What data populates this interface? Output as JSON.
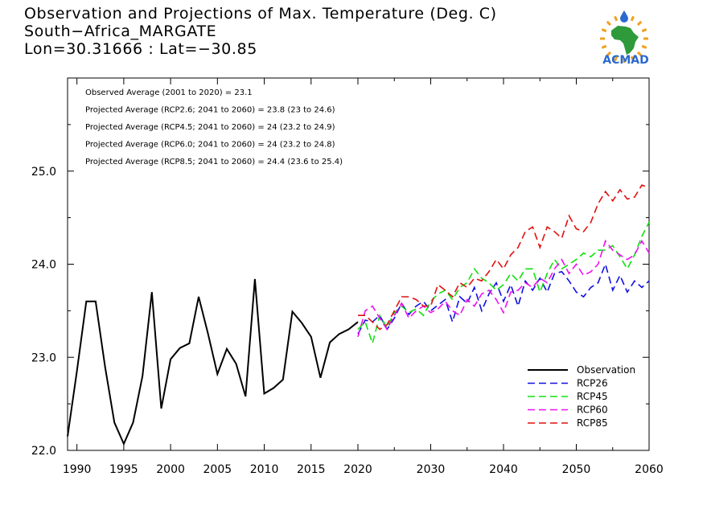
{
  "header": {
    "title": "Observation and Projections of Max. Temperature (Deg. C)",
    "location": "South−Africa_MARGATE",
    "coords": "Lon=30.31666 : Lat=−30.85"
  },
  "logo": {
    "text": "ACMAD"
  },
  "colors": {
    "Observation": "#000000",
    "RCP26": "#1010e0",
    "RCP45": "#10e010",
    "RCP60": "#f010f0",
    "RCP85": "#e01010",
    "logo_green": "#2e9a3a",
    "logo_orange": "#f0a020",
    "logo_blue": "#2a6ad0"
  },
  "chart_data": {
    "type": "line",
    "title": "Observation and Projections of Max. Temperature (Deg. C)",
    "xlim": [
      1989,
      2060
    ],
    "ylim": [
      22.0,
      26.0
    ],
    "xticks": [
      1990,
      1995,
      2000,
      2005,
      2010,
      2015,
      2020,
      2030,
      2040,
      2050,
      2060
    ],
    "yticks": [
      22.0,
      23.0,
      24.0,
      25.0
    ],
    "annotations": [
      "Observed Average (2001 to 2020) = 23.1",
      "Projected Average (RCP2.6; 2041 to 2060) = 23.8 (23 to 24.6)",
      "Projected Average (RCP4.5; 2041 to 2060) = 24 (23.2 to 24.9)",
      "Projected Average (RCP6.0; 2041 to 2060) = 24 (23.2 to 24.8)",
      "Projected Average (RCP8.5; 2041 to 2060) = 24.4 (23.6 to 25.4)"
    ],
    "legend_position": "bottom-right",
    "series": [
      {
        "name": "Observation",
        "style": "solid",
        "x": [
          1989,
          1990,
          1991,
          1992,
          1993,
          1994,
          1995,
          1996,
          1997,
          1998,
          1999,
          2000,
          2001,
          2002,
          2003,
          2004,
          2005,
          2006,
          2007,
          2008,
          2009,
          2010,
          2011,
          2012,
          2013,
          2014,
          2015,
          2016,
          2017,
          2018,
          2019,
          2020
        ],
        "values": [
          22.15,
          22.85,
          23.6,
          23.6,
          22.9,
          22.3,
          22.07,
          22.3,
          22.8,
          23.7,
          22.45,
          22.98,
          23.1,
          23.15,
          23.65,
          23.25,
          22.82,
          23.09,
          22.93,
          22.58,
          23.84,
          22.61,
          22.67,
          22.76,
          23.49,
          23.37,
          23.22,
          22.78,
          23.16,
          23.25,
          23.3,
          23.38
        ]
      },
      {
        "name": "RCP26",
        "style": "dashed",
        "x": [
          2020,
          2021,
          2022,
          2023,
          2024,
          2025,
          2026,
          2027,
          2028,
          2029,
          2030,
          2031,
          2032,
          2033,
          2034,
          2035,
          2036,
          2037,
          2038,
          2039,
          2040,
          2041,
          2042,
          2043,
          2044,
          2045,
          2046,
          2047,
          2048,
          2049,
          2050,
          2051,
          2052,
          2053,
          2054,
          2055,
          2056,
          2057,
          2058,
          2059,
          2060
        ],
        "values": [
          23.25,
          23.4,
          23.38,
          23.45,
          23.3,
          23.42,
          23.58,
          23.46,
          23.55,
          23.6,
          23.5,
          23.56,
          23.62,
          23.38,
          23.65,
          23.58,
          23.75,
          23.5,
          23.68,
          23.8,
          23.6,
          23.78,
          23.55,
          23.82,
          23.72,
          23.85,
          23.7,
          23.9,
          23.92,
          23.82,
          23.7,
          23.65,
          23.75,
          23.8,
          24.0,
          23.72,
          23.88,
          23.7,
          23.82,
          23.75,
          23.82
        ]
      },
      {
        "name": "RCP45",
        "style": "dashed",
        "x": [
          2020,
          2021,
          2022,
          2023,
          2024,
          2025,
          2026,
          2027,
          2028,
          2029,
          2030,
          2031,
          2032,
          2033,
          2034,
          2035,
          2036,
          2037,
          2038,
          2039,
          2040,
          2041,
          2042,
          2043,
          2044,
          2045,
          2046,
          2047,
          2048,
          2049,
          2050,
          2051,
          2052,
          2053,
          2054,
          2055,
          2056,
          2057,
          2058,
          2059,
          2060
        ],
        "values": [
          23.3,
          23.38,
          23.15,
          23.45,
          23.32,
          23.48,
          23.55,
          23.48,
          23.52,
          23.45,
          23.6,
          23.68,
          23.72,
          23.62,
          23.75,
          23.8,
          23.95,
          23.85,
          23.8,
          23.72,
          23.78,
          23.9,
          23.82,
          23.95,
          23.95,
          23.7,
          23.9,
          24.05,
          23.95,
          24.0,
          24.05,
          24.12,
          24.08,
          24.15,
          24.15,
          24.2,
          24.08,
          23.95,
          24.1,
          24.3,
          24.45
        ]
      },
      {
        "name": "RCP60",
        "style": "dashed",
        "x": [
          2020,
          2021,
          2022,
          2023,
          2024,
          2025,
          2026,
          2027,
          2028,
          2029,
          2030,
          2031,
          2032,
          2033,
          2034,
          2035,
          2036,
          2037,
          2038,
          2039,
          2040,
          2041,
          2042,
          2043,
          2044,
          2045,
          2046,
          2047,
          2048,
          2049,
          2050,
          2051,
          2052,
          2053,
          2054,
          2055,
          2056,
          2057,
          2058,
          2059,
          2060
        ],
        "values": [
          23.22,
          23.5,
          23.55,
          23.42,
          23.3,
          23.45,
          23.58,
          23.42,
          23.5,
          23.55,
          23.48,
          23.52,
          23.6,
          23.5,
          23.45,
          23.62,
          23.55,
          23.68,
          23.72,
          23.62,
          23.48,
          23.7,
          23.72,
          23.8,
          23.75,
          23.85,
          23.8,
          23.95,
          24.05,
          23.9,
          24.0,
          23.88,
          23.92,
          24.0,
          24.25,
          24.15,
          24.1,
          24.05,
          24.1,
          24.25,
          24.12
        ]
      },
      {
        "name": "RCP85",
        "style": "dashed",
        "x": [
          2020,
          2021,
          2022,
          2023,
          2024,
          2025,
          2026,
          2027,
          2028,
          2029,
          2030,
          2031,
          2032,
          2033,
          2034,
          2035,
          2036,
          2037,
          2038,
          2039,
          2040,
          2041,
          2042,
          2043,
          2044,
          2045,
          2046,
          2047,
          2048,
          2049,
          2050,
          2051,
          2052,
          2053,
          2054,
          2055,
          2056,
          2057,
          2058,
          2059,
          2060
        ],
        "values": [
          23.45,
          23.45,
          23.38,
          23.3,
          23.35,
          23.5,
          23.65,
          23.65,
          23.62,
          23.55,
          23.55,
          23.78,
          23.72,
          23.65,
          23.8,
          23.75,
          23.85,
          23.82,
          23.92,
          24.05,
          23.95,
          24.1,
          24.18,
          24.35,
          24.4,
          24.18,
          24.4,
          24.35,
          24.28,
          24.52,
          24.38,
          24.35,
          24.45,
          24.65,
          24.78,
          24.68,
          24.8,
          24.7,
          24.72,
          24.85,
          24.82
        ]
      }
    ]
  }
}
